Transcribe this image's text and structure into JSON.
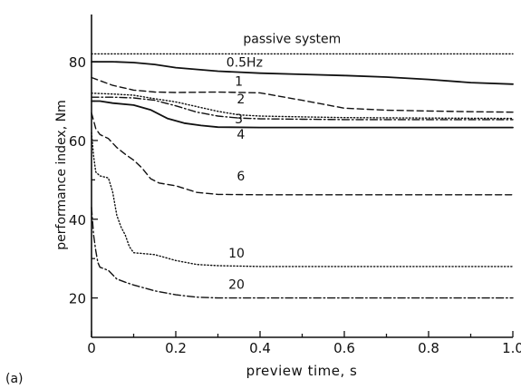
{
  "chart_data": {
    "type": "line",
    "xlabel": "preview time, s",
    "ylabel": "performance index, Nm",
    "panel_label": "(a)",
    "xlim": [
      0,
      1.0
    ],
    "ylim": [
      10,
      92
    ],
    "xticks": [
      0,
      0.2,
      0.4,
      0.6,
      0.8,
      1.0
    ],
    "xtick_labels": [
      "0",
      "0.2",
      "0.4",
      "0.6",
      "0.8",
      "1.0"
    ],
    "yticks": [
      20,
      40,
      60,
      80
    ],
    "ytick_labels": [
      "20",
      "40",
      "60",
      "80"
    ],
    "grid": false,
    "series": [
      {
        "name": "passive system",
        "style": "dotted",
        "x": [
          0,
          0.2,
          0.4,
          0.6,
          0.8,
          1.0
        ],
        "y": [
          82,
          82,
          82,
          82,
          82,
          82
        ]
      },
      {
        "name": "0.5Hz",
        "style": "solid",
        "x": [
          0,
          0.05,
          0.1,
          0.15,
          0.2,
          0.3,
          0.4,
          0.5,
          0.6,
          0.7,
          0.8,
          0.9,
          1.0
        ],
        "y": [
          80,
          80,
          79.8,
          79.3,
          78.5,
          77.6,
          77.1,
          76.8,
          76.5,
          76.1,
          75.5,
          74.7,
          74.3
        ]
      },
      {
        "name": "1",
        "style": "dashed",
        "x": [
          0,
          0.05,
          0.1,
          0.15,
          0.2,
          0.3,
          0.4,
          0.5,
          0.6,
          0.7,
          0.8,
          0.9,
          1.0
        ],
        "y": [
          76,
          74,
          72.8,
          72.3,
          72.2,
          72.3,
          72.1,
          70.2,
          68.2,
          67.7,
          67.5,
          67.3,
          67.2
        ]
      },
      {
        "name": "2",
        "style": "dotted",
        "x": [
          0,
          0.05,
          0.1,
          0.15,
          0.2,
          0.25,
          0.3,
          0.35,
          0.4,
          0.5,
          0.6,
          0.8,
          1.0
        ],
        "y": [
          72,
          71.8,
          71.5,
          70.6,
          69.8,
          68.6,
          67.4,
          66.5,
          66.2,
          66,
          65.8,
          65.7,
          65.6
        ]
      },
      {
        "name": "3",
        "style": "dashdot",
        "x": [
          0,
          0.05,
          0.1,
          0.15,
          0.2,
          0.25,
          0.3,
          0.35,
          0.4,
          0.5,
          0.6,
          0.8,
          1.0
        ],
        "y": [
          71,
          71,
          70.8,
          70.2,
          68.8,
          67.2,
          66.2,
          65.7,
          65.5,
          65.4,
          65.3,
          65.3,
          65.3
        ]
      },
      {
        "name": "4",
        "style": "solid",
        "x": [
          0,
          0.02,
          0.05,
          0.1,
          0.14,
          0.18,
          0.22,
          0.26,
          0.3,
          0.4,
          0.6,
          0.8,
          1.0
        ],
        "y": [
          70,
          70,
          69.5,
          69,
          67.8,
          65.6,
          64.4,
          63.8,
          63.4,
          63.3,
          63.3,
          63.3,
          63.3
        ]
      },
      {
        "name": "6",
        "style": "dashed",
        "x": [
          0,
          0.01,
          0.02,
          0.04,
          0.06,
          0.08,
          0.1,
          0.12,
          0.14,
          0.16,
          0.2,
          0.25,
          0.3,
          0.4,
          0.6,
          0.8,
          1.0
        ],
        "y": [
          67,
          63,
          61.5,
          60.5,
          58.2,
          56.5,
          55,
          53,
          50.3,
          49.2,
          48.5,
          46.8,
          46.3,
          46.2,
          46.2,
          46.2,
          46.2
        ]
      },
      {
        "name": "10",
        "style": "dotted",
        "x": [
          0,
          0.005,
          0.01,
          0.02,
          0.04,
          0.05,
          0.06,
          0.07,
          0.08,
          0.09,
          0.1,
          0.15,
          0.2,
          0.25,
          0.3,
          0.4,
          0.6,
          0.8,
          1.0
        ],
        "y": [
          62,
          56,
          52,
          51,
          50.5,
          47,
          41,
          38,
          36,
          33,
          31.5,
          31,
          29.5,
          28.5,
          28.2,
          28,
          28,
          28,
          28
        ]
      },
      {
        "name": "20",
        "style": "dashdot",
        "x": [
          0,
          0.005,
          0.01,
          0.015,
          0.02,
          0.04,
          0.06,
          0.08,
          0.1,
          0.15,
          0.2,
          0.25,
          0.3,
          0.4,
          0.6,
          0.8,
          1.0
        ],
        "y": [
          43,
          36,
          32,
          29,
          27.8,
          27,
          24.8,
          24,
          23.3,
          21.8,
          20.8,
          20.2,
          20,
          20,
          20,
          20,
          20
        ]
      }
    ],
    "labels": [
      {
        "series": "passive system",
        "text": "passive system",
        "x": 0.36,
        "y": 84.7
      },
      {
        "series": "0.5Hz",
        "text": "0.5Hz",
        "x": 0.32,
        "y": 78.7
      },
      {
        "series": "1",
        "text": "1",
        "x": 0.34,
        "y": 73.9
      },
      {
        "series": "2",
        "text": "2",
        "x": 0.345,
        "y": 69.4
      },
      {
        "series": "3",
        "text": "3",
        "x": 0.34,
        "y": 64.4
      },
      {
        "series": "4",
        "text": "4",
        "x": 0.345,
        "y": 60.4
      },
      {
        "series": "6",
        "text": "6",
        "x": 0.345,
        "y": 49.9
      },
      {
        "series": "10",
        "text": "10",
        "x": 0.325,
        "y": 30.3
      },
      {
        "series": "20",
        "text": "20",
        "x": 0.325,
        "y": 22.3
      }
    ]
  }
}
